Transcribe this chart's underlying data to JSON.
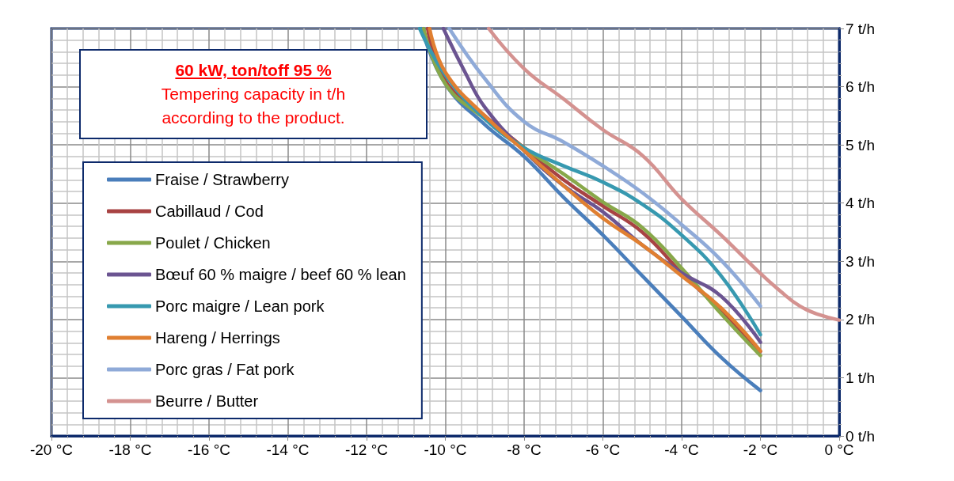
{
  "chart_data": {
    "type": "line",
    "title": "60 kW,  ton/toff 95 %",
    "subtitle": "Tempering capacity in t/h\naccording to the product.",
    "xlim": [
      -20,
      0
    ],
    "xticks": [
      {
        "value": -20,
        "label": "-20 °C"
      },
      {
        "value": -18,
        "label": "-18 °C"
      },
      {
        "value": -16,
        "label": "-16 °C"
      },
      {
        "value": -14,
        "label": "-14 °C"
      },
      {
        "value": -12,
        "label": "-12 °C"
      },
      {
        "value": -10,
        "label": "-10 °C"
      },
      {
        "value": -8,
        "label": "-8 °C"
      },
      {
        "value": -6,
        "label": "-6 °C"
      },
      {
        "value": -4,
        "label": "-4 °C"
      },
      {
        "value": -2,
        "label": "-2 °C"
      },
      {
        "value": 0,
        "label": "0 °C"
      }
    ],
    "ylim": [
      0,
      7
    ],
    "yticks": [
      {
        "value": 0,
        "label": "0 t/h"
      },
      {
        "value": 1,
        "label": "1 t/h"
      },
      {
        "value": 2,
        "label": "2 t/h"
      },
      {
        "value": 3,
        "label": "3 t/h"
      },
      {
        "value": 4,
        "label": "4 t/h"
      },
      {
        "value": 5,
        "label": "5 t/h"
      },
      {
        "value": 6,
        "label": "6 t/h"
      },
      {
        "value": 7,
        "label": "7 t/h"
      }
    ],
    "grid": true,
    "legend": "left",
    "marker": "none",
    "line_style": "solid",
    "series": [
      {
        "name": "Fraise / Strawberry",
        "color": "#4a7ebb",
        "x": [
          -10.6,
          -10,
          -9,
          -8,
          -7,
          -6,
          -5,
          -4,
          -3,
          -2
        ],
        "values": [
          7,
          6.05,
          5.35,
          4.8,
          4.1,
          3.45,
          2.75,
          2.05,
          1.35,
          0.78
        ]
      },
      {
        "name": "Cabillaud / Cod",
        "color": "#a84343",
        "x": [
          -10.45,
          -10,
          -9,
          -8,
          -7,
          -6,
          -5,
          -4,
          -3,
          -2
        ],
        "values": [
          7,
          6.1,
          5.5,
          4.95,
          4.4,
          3.95,
          3.5,
          2.8,
          2.15,
          1.45
        ]
      },
      {
        "name": "Poulet / Chicken",
        "color": "#88a84a",
        "x": [
          -10.55,
          -10,
          -9,
          -8,
          -7,
          -6,
          -5,
          -4,
          -3,
          -2
        ],
        "values": [
          7,
          6.05,
          5.45,
          4.95,
          4.5,
          4.02,
          3.58,
          2.88,
          2.1,
          1.38
        ]
      },
      {
        "name": "Bœuf 60 % maigre / beef 60 % lean",
        "color": "#6b5491",
        "x": [
          -10.05,
          -9.5,
          -9,
          -8,
          -7,
          -6,
          -5,
          -4,
          -3,
          -2
        ],
        "values": [
          7,
          6.25,
          5.65,
          4.9,
          4.3,
          3.85,
          3.28,
          2.8,
          2.4,
          1.61
        ]
      },
      {
        "name": "Porc maigre / Lean pork",
        "color": "#3799b0",
        "x": [
          -10.65,
          -10,
          -9,
          -8,
          -7,
          -6,
          -5,
          -4,
          -3,
          -2
        ],
        "values": [
          7,
          6.2,
          5.45,
          4.95,
          4.64,
          4.36,
          3.98,
          3.45,
          2.75,
          1.74
        ]
      },
      {
        "name": "Hareng / Herrings",
        "color": "#e07f31",
        "x": [
          -10.4,
          -10,
          -9,
          -8,
          -7,
          -6,
          -5,
          -4,
          -3,
          -2
        ],
        "values": [
          7,
          6.25,
          5.5,
          4.9,
          4.3,
          3.74,
          3.28,
          2.75,
          2.2,
          1.46
        ]
      },
      {
        "name": "Porc gras / Fat pork",
        "color": "#8faad8",
        "x": [
          -9.9,
          -9,
          -8,
          -7,
          -6,
          -5,
          -4,
          -3,
          -2
        ],
        "values": [
          7,
          6.14,
          5.4,
          5.05,
          4.64,
          4.18,
          3.63,
          3.02,
          2.23
        ]
      },
      {
        "name": "Beurre / Butter",
        "color": "#d49290",
        "x": [
          -8.9,
          -8,
          -7,
          -6,
          -5,
          -4,
          -3,
          -2,
          -1.5,
          -1,
          -0.5,
          0
        ],
        "values": [
          7,
          6.31,
          5.79,
          5.26,
          4.82,
          4.07,
          3.45,
          2.79,
          2.49,
          2.23,
          2.08,
          1.99
        ]
      }
    ]
  }
}
